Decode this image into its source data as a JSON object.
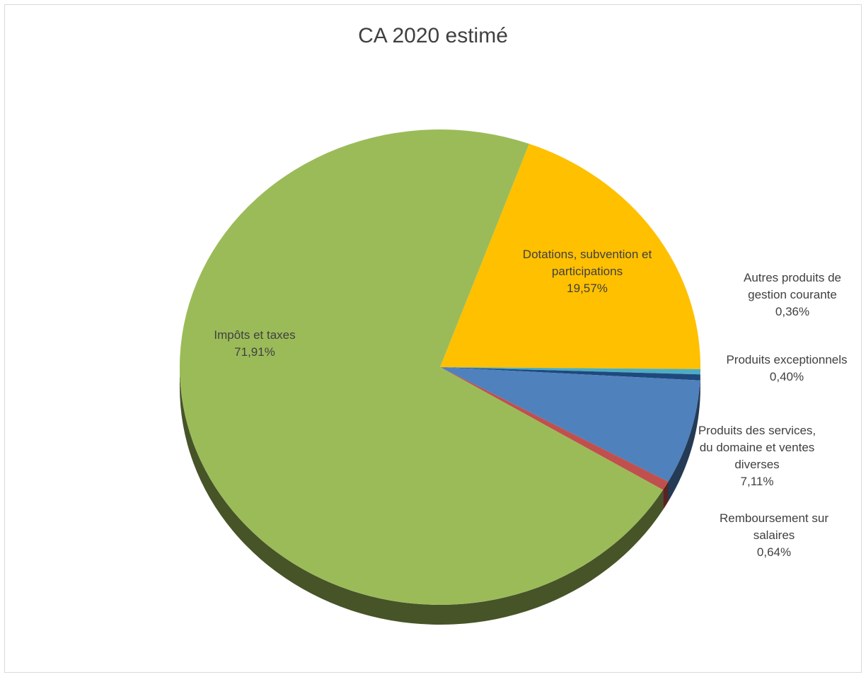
{
  "chart_data": {
    "type": "pie",
    "title": "CA 2020 estimé",
    "slices": [
      {
        "label": "Dotations, subvention et participations",
        "value": 19.57,
        "value_label": "19,57%",
        "color": "#FFC000"
      },
      {
        "label": "Autres produits de gestion courante",
        "value": 0.36,
        "value_label": "0,36%",
        "color": "#4BACC6"
      },
      {
        "label": "Produits exceptionnels",
        "value": 0.4,
        "value_label": "0,40%",
        "color": "#1F497D"
      },
      {
        "label": "Produits des services, du domaine et ventes diverses",
        "value": 7.11,
        "value_label": "7,11%",
        "color": "#4F81BD"
      },
      {
        "label": "Remboursement sur salaires",
        "value": 0.64,
        "value_label": "0,64%",
        "color": "#C0504D"
      },
      {
        "label": "Impôts et taxes",
        "value": 71.91,
        "value_label": "71,91%",
        "color": "#9BBB59"
      }
    ]
  }
}
